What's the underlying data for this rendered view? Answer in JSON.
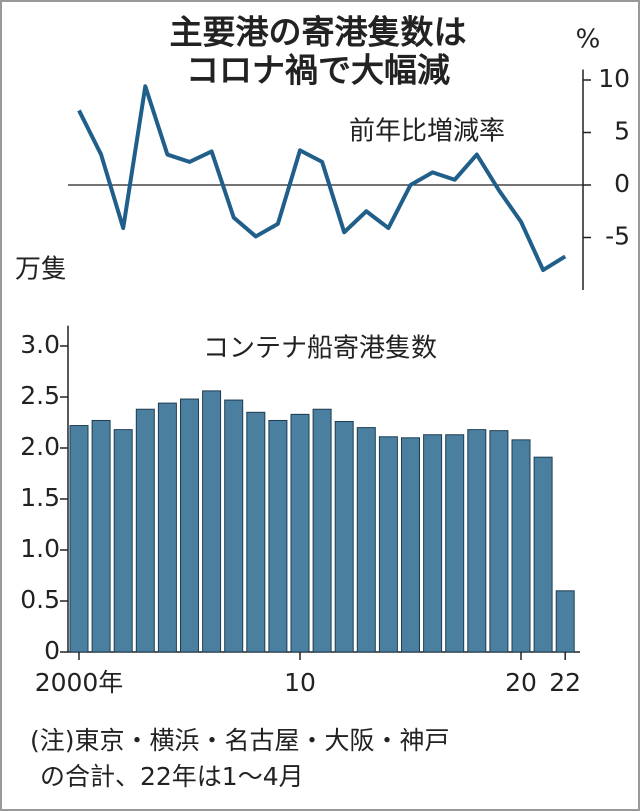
{
  "title": [
    "主要港の寄港隻数は",
    "コロナ禍で大幅減"
  ],
  "note": [
    "(注)東京・横浜・名古屋・大阪・神戸",
    "の合計、22年は1〜4月"
  ],
  "chart_data": [
    {
      "type": "line",
      "unit": "%",
      "label": "前年比増減率",
      "color": "#1f5f8a",
      "values": [
        7.1,
        2.9,
        -4.1,
        9.4,
        2.9,
        2.2,
        3.2,
        -3.1,
        -4.9,
        -3.7,
        3.3,
        2.2,
        -4.5,
        -2.5,
        -4.1,
        0,
        1.2,
        0.5,
        2.9,
        -0.5,
        -3.5,
        -8.1,
        -6.8
      ],
      "ylim": [
        -10,
        11
      ],
      "yticks": [
        10,
        5,
        0,
        -5
      ]
    },
    {
      "type": "bar",
      "unit": "万隻",
      "label": "コンテナ船寄港隻数",
      "color": "#4a7fa0",
      "categories": [
        "2000年",
        null,
        null,
        null,
        null,
        null,
        null,
        null,
        null,
        null,
        "10",
        null,
        null,
        null,
        null,
        null,
        null,
        null,
        null,
        null,
        "20",
        null,
        "22"
      ],
      "values": [
        2.22,
        2.27,
        2.18,
        2.38,
        2.44,
        2.48,
        2.56,
        2.47,
        2.35,
        2.27,
        2.33,
        2.38,
        2.26,
        2.2,
        2.11,
        2.1,
        2.13,
        2.13,
        2.18,
        2.17,
        2.08,
        1.91,
        0.6
      ],
      "ylim": [
        0,
        3.2
      ],
      "yticks": [
        {
          "value": 0,
          "label": "0"
        },
        {
          "value": 0.5,
          "label": "0.5"
        },
        {
          "value": 1,
          "label": "1.0"
        },
        {
          "value": 1.5,
          "label": "1.5"
        },
        {
          "value": 2,
          "label": "2.0"
        },
        {
          "value": 2.5,
          "label": "2.5"
        },
        {
          "value": 3,
          "label": "3.0"
        }
      ]
    }
  ]
}
